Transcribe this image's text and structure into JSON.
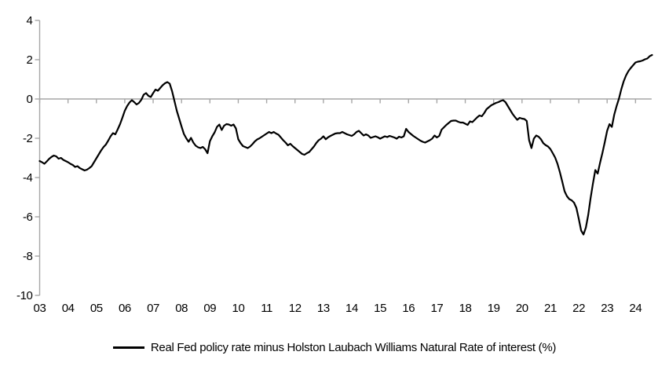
{
  "legend": {
    "label": "Real Fed policy rate minus Holston Laubach Williams Natural Rate of interest (%)"
  },
  "chart_data": {
    "type": "line",
    "title": "",
    "xlabel": "",
    "ylabel": "",
    "ylim": [
      -10,
      4
    ],
    "y_ticks": [
      4,
      2,
      0,
      -2,
      -4,
      -6,
      -8,
      -10
    ],
    "x_tick_labels": [
      "03",
      "04",
      "05",
      "06",
      "07",
      "08",
      "09",
      "10",
      "11",
      "12",
      "13",
      "14",
      "15",
      "16",
      "17",
      "18",
      "19",
      "20",
      "21",
      "22",
      "23",
      "24"
    ],
    "grid": false,
    "zero_line": true,
    "legend_position": "bottom",
    "line_color": "#000000",
    "axis_color": "#a6a6a6",
    "series": [
      {
        "name": "Real Fed policy rate minus Holston Laubach Williams Natural Rate of interest (%)",
        "frequency": "monthly",
        "start": "2003-01",
        "end": "2024-08",
        "values": [
          -3.16,
          -3.22,
          -3.3,
          -3.18,
          -3.05,
          -2.95,
          -2.88,
          -2.92,
          -3.04,
          -3.0,
          -3.1,
          -3.16,
          -3.22,
          -3.3,
          -3.36,
          -3.46,
          -3.42,
          -3.52,
          -3.58,
          -3.64,
          -3.6,
          -3.52,
          -3.42,
          -3.22,
          -3.02,
          -2.82,
          -2.62,
          -2.45,
          -2.32,
          -2.12,
          -1.9,
          -1.74,
          -1.8,
          -1.55,
          -1.28,
          -0.95,
          -0.6,
          -0.36,
          -0.18,
          -0.06,
          -0.16,
          -0.28,
          -0.2,
          -0.04,
          0.22,
          0.3,
          0.16,
          0.1,
          0.3,
          0.48,
          0.42,
          0.56,
          0.7,
          0.8,
          0.86,
          0.78,
          0.4,
          -0.1,
          -0.6,
          -1.0,
          -1.4,
          -1.78,
          -2.0,
          -2.18,
          -1.98,
          -2.22,
          -2.38,
          -2.46,
          -2.5,
          -2.44,
          -2.56,
          -2.76,
          -2.15,
          -1.9,
          -1.7,
          -1.42,
          -1.3,
          -1.58,
          -1.36,
          -1.28,
          -1.3,
          -1.36,
          -1.3,
          -1.5,
          -2.05,
          -2.25,
          -2.4,
          -2.45,
          -2.5,
          -2.42,
          -2.3,
          -2.16,
          -2.06,
          -2.0,
          -1.92,
          -1.84,
          -1.76,
          -1.68,
          -1.74,
          -1.68,
          -1.76,
          -1.82,
          -1.96,
          -2.1,
          -2.22,
          -2.36,
          -2.28,
          -2.4,
          -2.5,
          -2.6,
          -2.7,
          -2.8,
          -2.84,
          -2.76,
          -2.7,
          -2.56,
          -2.42,
          -2.24,
          -2.1,
          -2.02,
          -1.9,
          -2.05,
          -1.95,
          -1.88,
          -1.82,
          -1.76,
          -1.74,
          -1.74,
          -1.68,
          -1.74,
          -1.8,
          -1.84,
          -1.88,
          -1.8,
          -1.68,
          -1.62,
          -1.74,
          -1.86,
          -1.8,
          -1.86,
          -1.98,
          -1.94,
          -1.9,
          -1.95,
          -2.02,
          -1.96,
          -1.9,
          -1.94,
          -1.88,
          -1.92,
          -1.96,
          -2.02,
          -1.92,
          -1.96,
          -1.9,
          -1.52,
          -1.68,
          -1.78,
          -1.88,
          -1.96,
          -2.04,
          -2.12,
          -2.18,
          -2.22,
          -2.16,
          -2.1,
          -2.02,
          -1.86,
          -1.96,
          -1.88,
          -1.56,
          -1.44,
          -1.32,
          -1.22,
          -1.12,
          -1.1,
          -1.1,
          -1.16,
          -1.2,
          -1.2,
          -1.26,
          -1.32,
          -1.14,
          -1.18,
          -1.06,
          -0.94,
          -0.84,
          -0.88,
          -0.72,
          -0.52,
          -0.42,
          -0.32,
          -0.26,
          -0.2,
          -0.16,
          -0.1,
          -0.06,
          -0.16,
          -0.36,
          -0.56,
          -0.76,
          -0.92,
          -1.06,
          -0.96,
          -1.0,
          -1.02,
          -1.12,
          -2.1,
          -2.5,
          -2.02,
          -1.86,
          -1.92,
          -2.05,
          -2.25,
          -2.35,
          -2.42,
          -2.55,
          -2.76,
          -2.98,
          -3.3,
          -3.72,
          -4.2,
          -4.7,
          -4.95,
          -5.1,
          -5.16,
          -5.28,
          -5.55,
          -6.1,
          -6.7,
          -6.9,
          -6.55,
          -5.9,
          -5.05,
          -4.3,
          -3.62,
          -3.8,
          -3.25,
          -2.75,
          -2.2,
          -1.62,
          -1.28,
          -1.42,
          -0.8,
          -0.36,
          0.02,
          0.5,
          0.9,
          1.2,
          1.42,
          1.58,
          1.72,
          1.86,
          1.9,
          1.92,
          1.96,
          2.02,
          2.06,
          2.18,
          2.24
        ]
      }
    ]
  }
}
